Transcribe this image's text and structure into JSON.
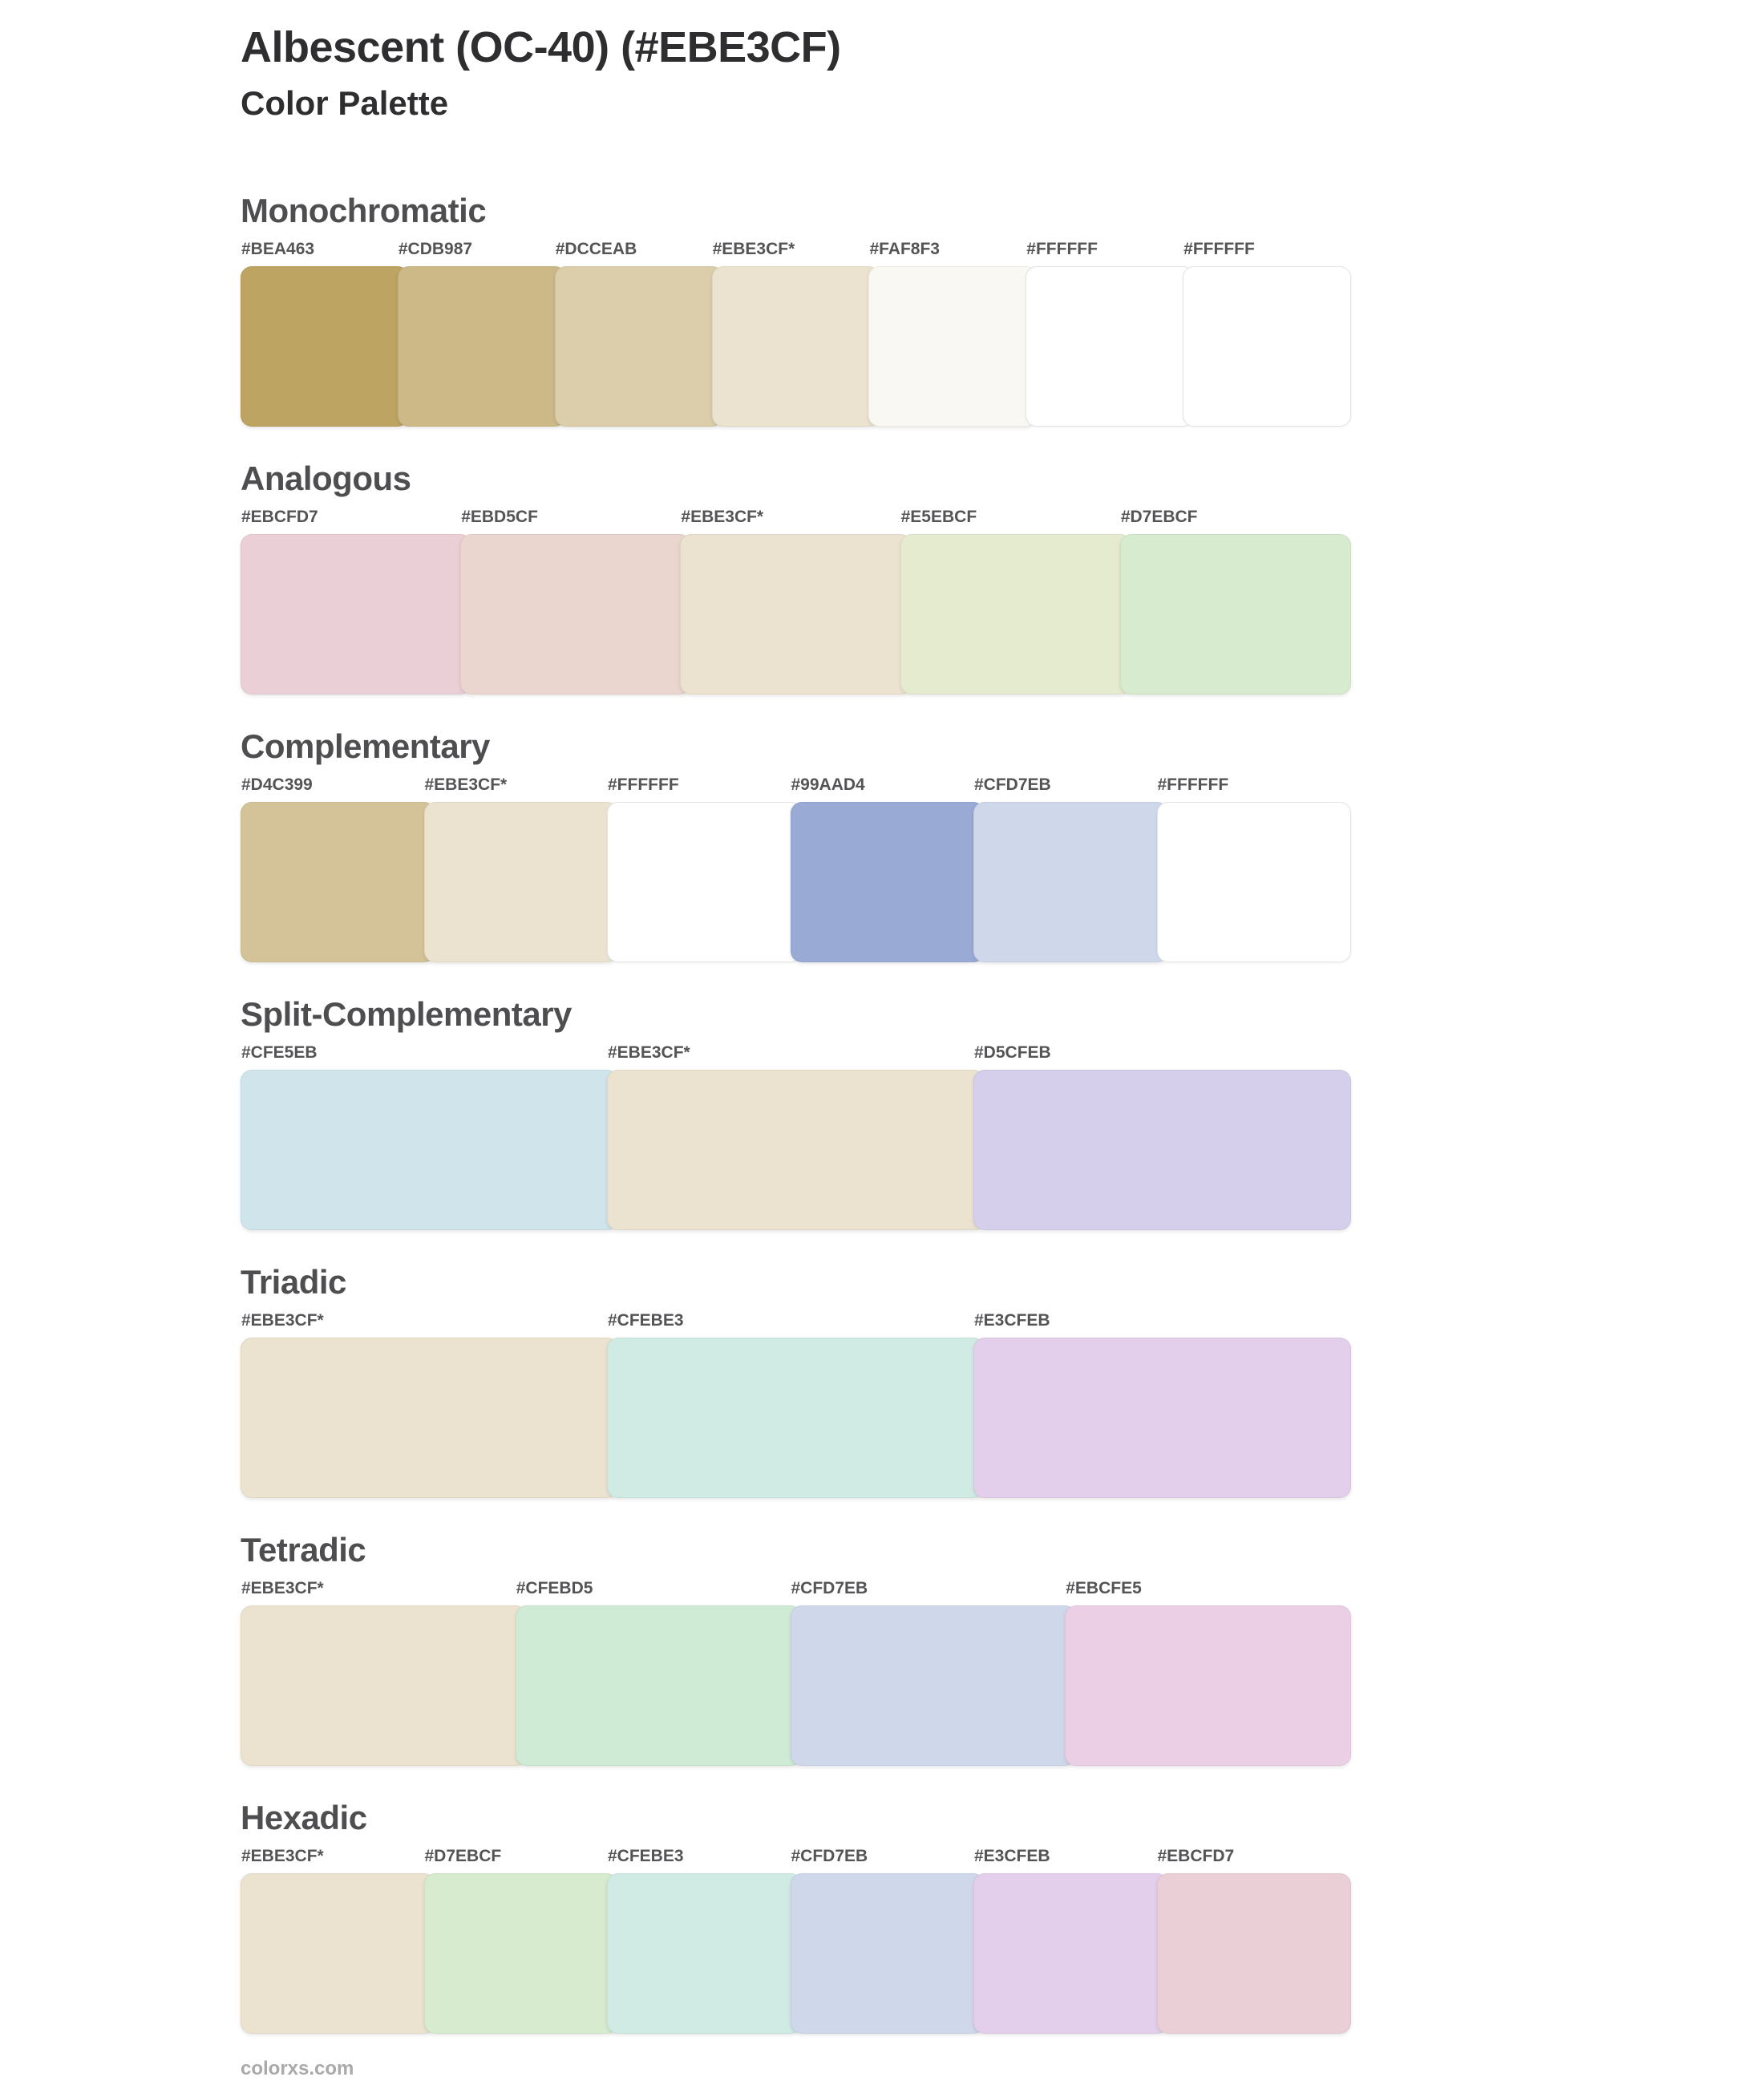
{
  "header": {
    "title": "Albescent (OC-40) (#EBE3CF)",
    "subtitle": "Color Palette"
  },
  "footer": {
    "site": "colorxs.com"
  },
  "sections": [
    {
      "name": "Monochromatic",
      "swatches": [
        {
          "label": "#BEA463",
          "color": "#BEA463"
        },
        {
          "label": "#CDB987",
          "color": "#CDB987"
        },
        {
          "label": "#DCCEAB",
          "color": "#DCCEAB"
        },
        {
          "label": "#EBE3CF*",
          "color": "#EBE3CF"
        },
        {
          "label": "#FAF8F3",
          "color": "#FAF8F3"
        },
        {
          "label": "#FFFFFF",
          "color": "#FFFFFF"
        },
        {
          "label": "#FFFFFF",
          "color": "#FFFFFF"
        }
      ]
    },
    {
      "name": "Analogous",
      "swatches": [
        {
          "label": "#EBCFD7",
          "color": "#EBCFD7"
        },
        {
          "label": "#EBD5CF",
          "color": "#EBD5CF"
        },
        {
          "label": "#EBE3CF*",
          "color": "#EBE3CF"
        },
        {
          "label": "#E5EBCF",
          "color": "#E5EBCF"
        },
        {
          "label": "#D7EBCF",
          "color": "#D7EBCF"
        }
      ]
    },
    {
      "name": "Complementary",
      "swatches": [
        {
          "label": "#D4C399",
          "color": "#D4C399"
        },
        {
          "label": "#EBE3CF*",
          "color": "#EBE3CF"
        },
        {
          "label": "#FFFFFF",
          "color": "#FFFFFF"
        },
        {
          "label": "#99AAD4",
          "color": "#99AAD4"
        },
        {
          "label": "#CFD7EB",
          "color": "#CFD7EB"
        },
        {
          "label": "#FFFFFF",
          "color": "#FFFFFF"
        }
      ]
    },
    {
      "name": "Split-Complementary",
      "swatches": [
        {
          "label": "#CFE5EB",
          "color": "#CFE5EB"
        },
        {
          "label": "#EBE3CF*",
          "color": "#EBE3CF"
        },
        {
          "label": "#D5CFEB",
          "color": "#D5CFEB"
        }
      ]
    },
    {
      "name": "Triadic",
      "swatches": [
        {
          "label": "#EBE3CF*",
          "color": "#EBE3CF"
        },
        {
          "label": "#CFEBE3",
          "color": "#CFEBE3"
        },
        {
          "label": "#E3CFEB",
          "color": "#E3CFEB"
        }
      ]
    },
    {
      "name": "Tetradic",
      "swatches": [
        {
          "label": "#EBE3CF*",
          "color": "#EBE3CF"
        },
        {
          "label": "#CFEBD5",
          "color": "#CFEBD5"
        },
        {
          "label": "#CFD7EB",
          "color": "#CFD7EB"
        },
        {
          "label": "#EBCFE5",
          "color": "#EBCFE5"
        }
      ]
    },
    {
      "name": "Hexadic",
      "swatches": [
        {
          "label": "#EBE3CF*",
          "color": "#EBE3CF"
        },
        {
          "label": "#D7EBCF",
          "color": "#D7EBCF"
        },
        {
          "label": "#CFEBE3",
          "color": "#CFEBE3"
        },
        {
          "label": "#CFD7EB",
          "color": "#CFD7EB"
        },
        {
          "label": "#E3CFEB",
          "color": "#E3CFEB"
        },
        {
          "label": "#EBCFD7",
          "color": "#EBCFD7"
        }
      ]
    }
  ]
}
